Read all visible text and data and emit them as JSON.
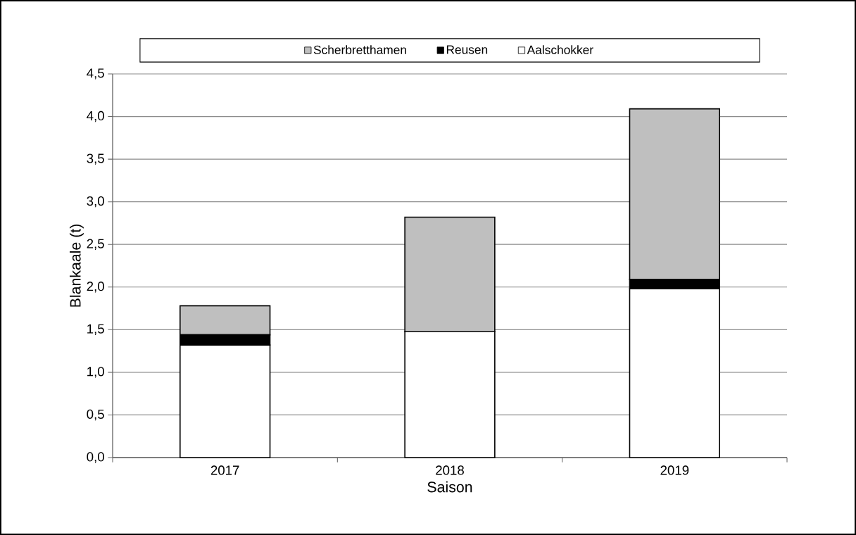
{
  "chart_data": {
    "type": "bar",
    "stacked": true,
    "xlabel": "Saison",
    "ylabel": "Blankaale (t)",
    "categories": [
      "2017",
      "2018",
      "2019"
    ],
    "series": [
      {
        "name": "Aalschokker",
        "color": "#ffffff",
        "values": [
          1.32,
          1.48,
          1.98
        ]
      },
      {
        "name": "Reusen",
        "color": "#000000",
        "values": [
          0.12,
          0,
          0.11
        ]
      },
      {
        "name": "Scherbretthamen",
        "color": "#bfbfbf",
        "values": [
          0.34,
          1.34,
          2.0
        ]
      }
    ],
    "ylim": [
      0,
      4.5
    ],
    "yticks": [
      {
        "value": 0,
        "label": "0,0"
      },
      {
        "value": 0.5,
        "label": "0,5"
      },
      {
        "value": 1,
        "label": "1,0"
      },
      {
        "value": 1.5,
        "label": "1,5"
      },
      {
        "value": 2,
        "label": "2,0"
      },
      {
        "value": 2.5,
        "label": "2,5"
      },
      {
        "value": 3,
        "label": "3,0"
      },
      {
        "value": 3.5,
        "label": "3,5"
      },
      {
        "value": 4,
        "label": "4,0"
      },
      {
        "value": 4.5,
        "label": "4,5"
      }
    ],
    "grid": "y",
    "legend": "top"
  }
}
